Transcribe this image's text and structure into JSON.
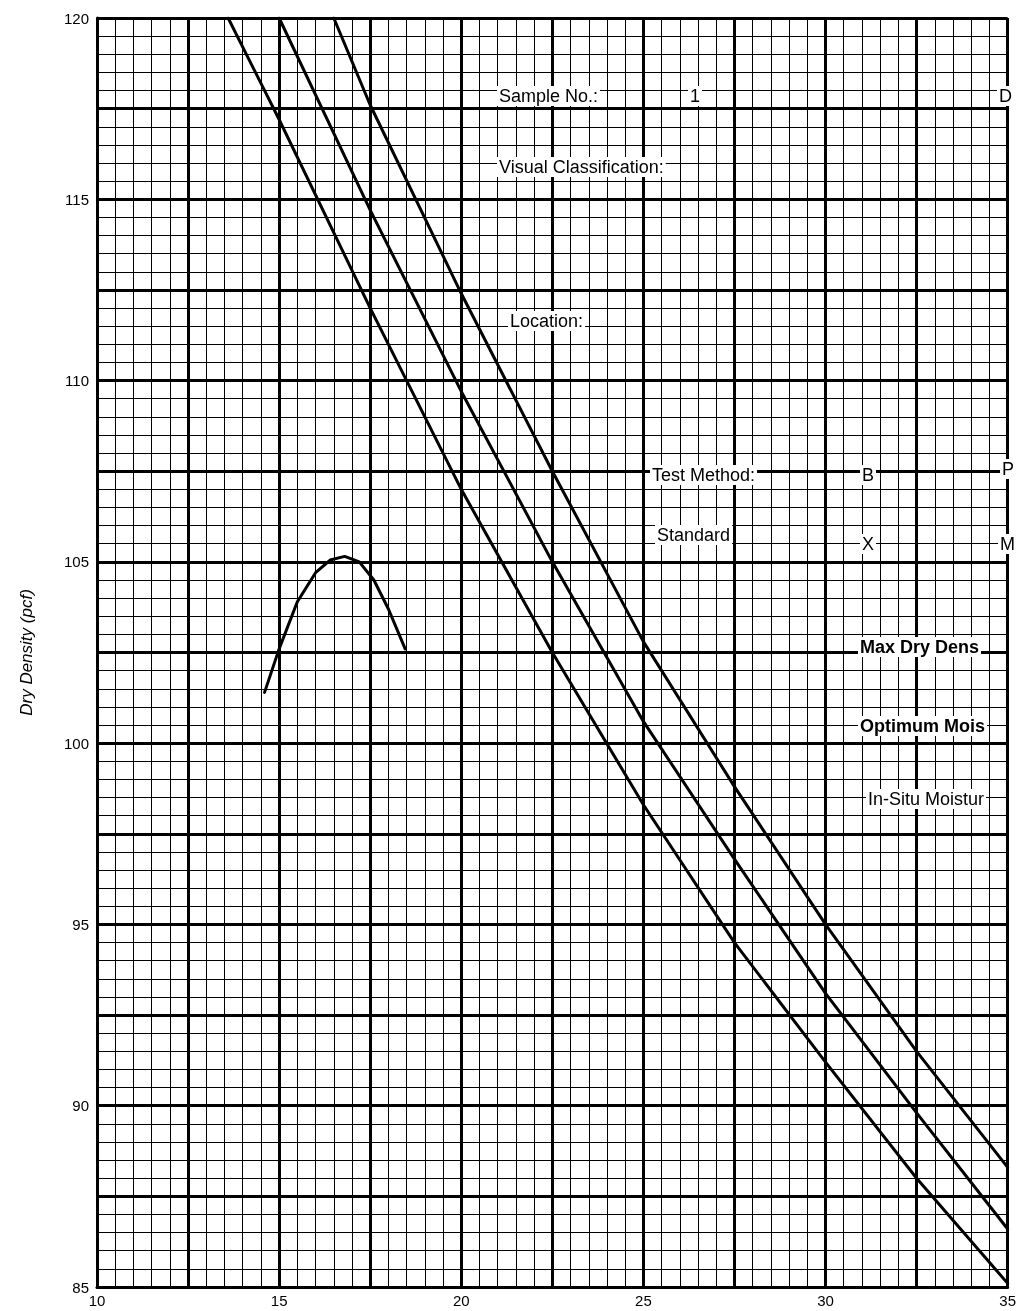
{
  "chart_data": {
    "type": "line",
    "ylabel": "Dry Density (pcf)",
    "annotations": [
      "Sample No.:",
      "1",
      "D",
      "Visual Classification:",
      "Location:",
      "Test Method:",
      "B",
      "P",
      "Standard",
      "X",
      "M",
      "Max Dry Dens",
      "Optimum Mois",
      "In-Situ Moistur"
    ],
    "series": [
      {
        "color": "#000000",
        "x": [
          16.5,
          17.5,
          20,
          22.5,
          25,
          27.5,
          30,
          32.5,
          35
        ],
        "values": [
          120,
          117.6,
          112.4,
          107.5,
          102.8,
          98.8,
          95,
          91.5,
          88.3
        ]
      },
      {
        "color": "#000000",
        "x": [
          15,
          17.5,
          20,
          22.5,
          25,
          27.5,
          30,
          32.5,
          35
        ],
        "values": [
          120,
          114.7,
          109.7,
          105,
          100.6,
          96.8,
          93.1,
          89.8,
          86.6
        ]
      },
      {
        "color": "#000000",
        "x": [
          13.6,
          15,
          17.5,
          20,
          22.5,
          25,
          27.5,
          30,
          32.5,
          35
        ],
        "values": [
          120,
          117.2,
          112,
          107,
          102.5,
          98.3,
          94.5,
          91.2,
          88,
          85.1
        ]
      },
      {
        "color": "#000000",
        "x": [
          14.6,
          15,
          15.5,
          16,
          16.4,
          16.8,
          17.2,
          17.6,
          18,
          18.46
        ],
        "values": [
          101.4,
          102.6,
          103.9,
          104.7,
          105.05,
          105.15,
          105,
          104.5,
          103.7,
          102.6
        ]
      }
    ],
    "xlim": [
      10,
      35
    ],
    "xticks": [
      10,
      {
        "value": 12.5,
        "label": null
      },
      15,
      {
        "value": 17.5,
        "label": null
      },
      20,
      {
        "value": 22.5,
        "label": null
      },
      25,
      {
        "value": 27.5,
        "label": null
      },
      30,
      {
        "value": 32.5,
        "label": null
      },
      35
    ],
    "ylim": [
      85,
      120
    ],
    "yticks": [
      85,
      {
        "value": 87.5,
        "label": null
      },
      90,
      {
        "value": 92.5,
        "label": null
      },
      95,
      {
        "value": 97.5,
        "label": null
      },
      100,
      {
        "value": 102.5,
        "label": null
      },
      105,
      {
        "value": 107.5,
        "label": null
      },
      110,
      {
        "value": 112.5,
        "label": null
      },
      115,
      {
        "value": 117.5,
        "label": null
      },
      120
    ],
    "grid": true,
    "marker": "none",
    "line_style": "solid"
  }
}
